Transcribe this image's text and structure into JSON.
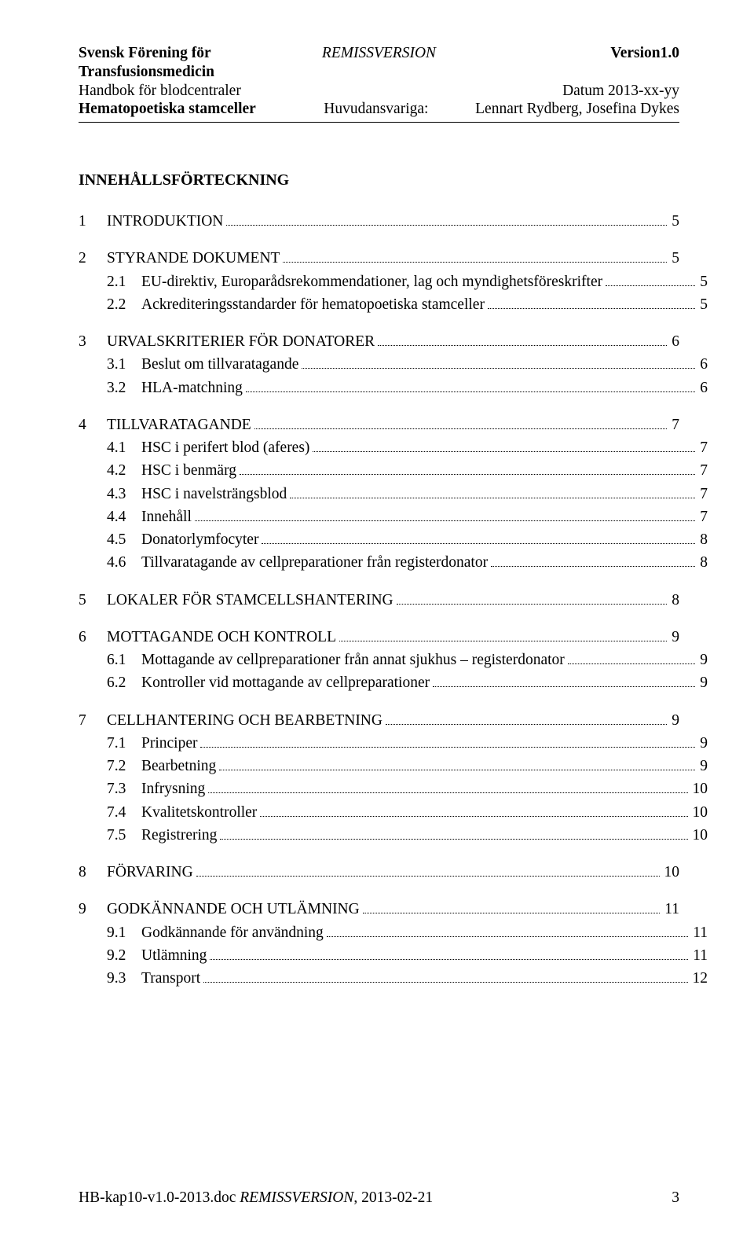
{
  "header": {
    "row1_left": "Svensk Förening för Transfusionsmedicin",
    "row1_mid": "REMISSVERSION",
    "row1_right": "Version1.0",
    "row2_left": "Handbok för blodcentraler",
    "row2_right": "Datum 2013-xx-yy",
    "row3_left": "Hematopoetiska stamceller",
    "row3_mid": "Huvudansvariga:",
    "row3_right": "Lennart Rydberg, Josefina Dykes"
  },
  "toc_title": "INNEHÅLLSFÖRTECKNING",
  "toc": [
    {
      "level": 1,
      "num": "1",
      "label": "INTRODUKTION",
      "page": "5",
      "gapBefore": true
    },
    {
      "level": 1,
      "num": "2",
      "label": "STYRANDE DOKUMENT",
      "page": "5",
      "gapBefore": true
    },
    {
      "level": 2,
      "num": "2.1",
      "label": "EU-direktiv, Europarådsrekommendationer, lag och myndighetsföreskrifter",
      "page": "5"
    },
    {
      "level": 2,
      "num": "2.2",
      "label": "Ackrediteringsstandarder för hematopoetiska stamceller",
      "page": "5"
    },
    {
      "level": 1,
      "num": "3",
      "label": "URVALSKRITERIER FÖR DONATORER",
      "page": "6",
      "gapBefore": true
    },
    {
      "level": 2,
      "num": "3.1",
      "label": "Beslut om tillvaratagande",
      "page": "6"
    },
    {
      "level": 2,
      "num": "3.2",
      "label": "HLA-matchning",
      "page": "6"
    },
    {
      "level": 1,
      "num": "4",
      "label": "TILLVARATAGANDE",
      "page": "7",
      "gapBefore": true
    },
    {
      "level": 2,
      "num": "4.1",
      "label": "HSC i perifert blod (aferes)",
      "page": "7"
    },
    {
      "level": 2,
      "num": "4.2",
      "label": "HSC i benmärg",
      "page": "7"
    },
    {
      "level": 2,
      "num": "4.3",
      "label": "HSC i navelsträngsblod",
      "page": "7"
    },
    {
      "level": 2,
      "num": "4.4",
      "label": "Innehåll",
      "page": "7"
    },
    {
      "level": 2,
      "num": "4.5",
      "label": "Donatorlymfocyter",
      "page": "8"
    },
    {
      "level": 2,
      "num": "4.6",
      "label": "Tillvaratagande av cellpreparationer från registerdonator",
      "page": "8"
    },
    {
      "level": 1,
      "num": "5",
      "label": "LOKALER FÖR STAMCELLSHANTERING",
      "page": "8",
      "gapBefore": true
    },
    {
      "level": 1,
      "num": "6",
      "label": "MOTTAGANDE OCH KONTROLL",
      "page": "9",
      "gapBefore": true
    },
    {
      "level": 2,
      "num": "6.1",
      "label": "Mottagande av cellpreparationer från annat sjukhus – registerdonator",
      "page": "9"
    },
    {
      "level": 2,
      "num": "6.2",
      "label": "Kontroller vid mottagande av cellpreparationer",
      "page": "9"
    },
    {
      "level": 1,
      "num": "7",
      "label": "CELLHANTERING OCH BEARBETNING",
      "page": "9",
      "gapBefore": true
    },
    {
      "level": 2,
      "num": "7.1",
      "label": "Principer",
      "page": "9"
    },
    {
      "level": 2,
      "num": "7.2",
      "label": "Bearbetning",
      "page": "9"
    },
    {
      "level": 2,
      "num": "7.3",
      "label": "Infrysning",
      "page": "10"
    },
    {
      "level": 2,
      "num": "7.4",
      "label": "Kvalitetskontroller",
      "page": "10"
    },
    {
      "level": 2,
      "num": "7.5",
      "label": "Registrering",
      "page": "10"
    },
    {
      "level": 1,
      "num": "8",
      "label": "FÖRVARING",
      "page": "10",
      "gapBefore": true
    },
    {
      "level": 1,
      "num": "9",
      "label": "GODKÄNNANDE OCH UTLÄMNING",
      "page": "11",
      "gapBefore": true
    },
    {
      "level": 2,
      "num": "9.1",
      "label": "Godkännande för användning",
      "page": "11"
    },
    {
      "level": 2,
      "num": "9.2",
      "label": "Utlämning",
      "page": "11"
    },
    {
      "level": 2,
      "num": "9.3",
      "label": "Transport",
      "page": "12"
    }
  ],
  "footer": {
    "left_plain": "HB-kap10-v1.0-2013.doc ",
    "left_italic": "REMISSVERSION",
    "left_tail": ", 2013-02-21",
    "page_num": "3"
  }
}
